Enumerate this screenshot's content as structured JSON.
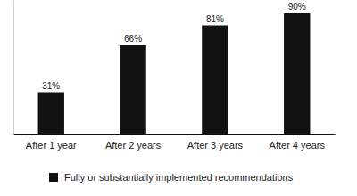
{
  "chart_data": {
    "type": "bar",
    "categories": [
      "After 1 year",
      "After 2 years",
      "After 3 years",
      "After 4 years"
    ],
    "series": [
      {
        "name": "Fully or substantially implemented recommendations",
        "color": "#111111",
        "values": [
          31,
          66,
          81,
          90
        ],
        "value_labels": [
          "31%",
          "66%",
          "81%",
          "90%"
        ]
      }
    ],
    "ylim": [
      0,
      100
    ],
    "grid": false,
    "legend": "bottom",
    "data_labels": true,
    "tick_labels": "x"
  }
}
